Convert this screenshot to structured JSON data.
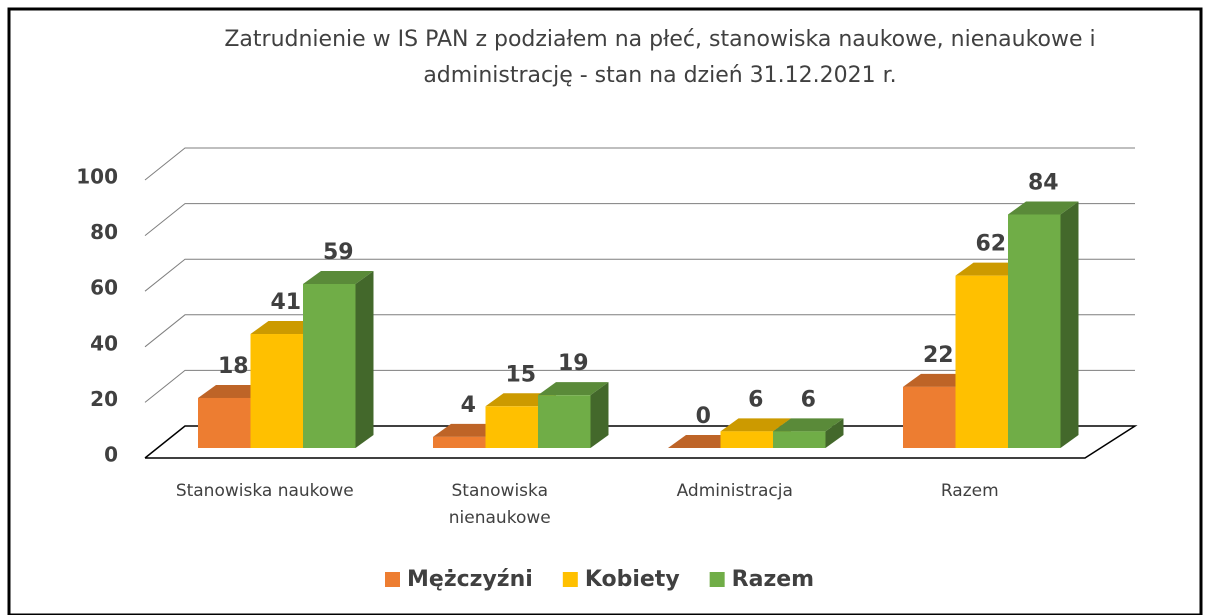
{
  "chart_data": {
    "type": "bar3d",
    "title": "Zatrudnienie w IS PAN z podziałem na płeć, stanowiska naukowe, nienaukowe i administrację - stan na dzień 31.12.2021 r.",
    "categories": [
      "Stanowiska naukowe",
      "Stanowiska nienaukowe",
      "Administracja",
      "Razem"
    ],
    "series": [
      {
        "name": "Mężczyźni",
        "color": "#ED7D31",
        "values": [
          18,
          4,
          0,
          22
        ]
      },
      {
        "name": "Kobiety",
        "color": "#FFC000",
        "values": [
          41,
          15,
          6,
          62
        ]
      },
      {
        "name": "Razem",
        "color": "#70AD47",
        "values": [
          59,
          19,
          6,
          84
        ]
      }
    ],
    "ylim": [
      0,
      100
    ],
    "yticks": [
      0,
      20,
      40,
      60,
      80,
      100
    ],
    "grid": true,
    "legend": "bottom"
  }
}
